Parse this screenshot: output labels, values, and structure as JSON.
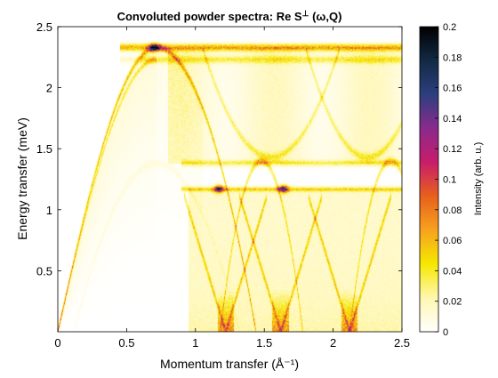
{
  "chart_data": {
    "type": "heatmap",
    "title": "Convoluted powder spectra: Re S",
    "title_sup": "⊥",
    "title_suffix": " (ω,Q)",
    "xlabel": "Momentum transfer (Å⁻¹)",
    "ylabel": "Energy transfer (meV)",
    "colorbar_label": "Intensity (arb. u.)",
    "xlim": [
      0,
      2.5
    ],
    "ylim": [
      0,
      2.5
    ],
    "x_ticks": [
      0,
      0.5,
      1,
      1.5,
      2,
      2.5
    ],
    "x_tick_labels": [
      "0",
      "0.5",
      "1",
      "1.5",
      "2",
      "2.5"
    ],
    "y_ticks": [
      0.5,
      1,
      1.5,
      2,
      2.5
    ],
    "y_tick_labels": [
      "0.5",
      "1",
      "1.5",
      "2",
      "2.5"
    ],
    "clim": [
      0,
      0.2
    ],
    "colorbar_ticks": [
      0,
      0.02,
      0.04,
      0.06,
      0.08,
      0.1,
      0.12,
      0.14,
      0.16,
      0.18,
      0.2
    ],
    "colorbar_tick_labels": [
      "0",
      "0.02",
      "0.04",
      "0.06",
      "0.08",
      "0.1",
      "0.12",
      "0.14",
      "0.16",
      "0.18",
      "0.2"
    ],
    "colormap_stops": [
      "#ffffff",
      "#fff7b0",
      "#f5e800",
      "#f7a21e",
      "#e8601c",
      "#c81d6a",
      "#8a2a8c",
      "#2c3f7f",
      "#122a44",
      "#000000"
    ],
    "grid": false,
    "colorbar_position": "right",
    "features": {
      "upper_band_energy": 2.33,
      "lower_band_energy": 1.17,
      "middle_band_energy": 1.38,
      "dispersion_peak": {
        "q": 0.72,
        "e": 2.33
      },
      "lower_dome_peak": {
        "q": 0.72,
        "e": 1.38
      },
      "secondary_dome_peaks": [
        {
          "q": 1.48,
          "e": 1.4
        },
        {
          "q": 2.42,
          "e": 1.4
        }
      ],
      "gapless_points_q": [
        1.22,
        1.62,
        2.12
      ],
      "bright_spots": [
        {
          "q": 1.17,
          "e": 1.17,
          "intensity": 0.12
        },
        {
          "q": 1.64,
          "e": 1.17,
          "intensity": 0.12
        },
        {
          "q": 0.7,
          "e": 2.33,
          "intensity": 0.12
        }
      ]
    }
  }
}
